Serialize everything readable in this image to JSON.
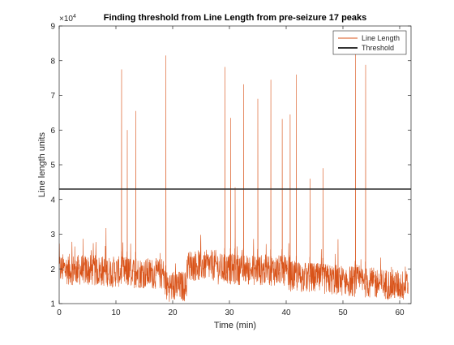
{
  "chart_data": {
    "type": "line",
    "title": "Finding threshold from Line Length from pre-seizure 17 peaks",
    "xlabel": "Time (min)",
    "ylabel": "Line length units",
    "y_exponent_label": "×10",
    "y_exponent_power": "4",
    "xlim": [
      0,
      62
    ],
    "ylim": [
      1,
      9
    ],
    "y_scale_factor": 10000,
    "xticks": [
      0,
      10,
      20,
      30,
      40,
      50,
      60
    ],
    "yticks": [
      1,
      2,
      3,
      4,
      5,
      6,
      7,
      8,
      9
    ],
    "grid": false,
    "legend_placement": "top-right",
    "series": [
      {
        "name": "Line Length",
        "color": "#D95319",
        "baseline_segments": [
          {
            "x": [
              0,
              18.6
            ],
            "y": [
              2.0,
              1.85
            ]
          },
          {
            "x": [
              18.6,
              22.5
            ],
            "y": [
              1.5,
              1.5
            ]
          },
          {
            "x": [
              22.5,
              28
            ],
            "y": [
              2.1,
              2.1
            ]
          },
          {
            "x": [
              28,
              40
            ],
            "y": [
              2.0,
              1.95
            ]
          },
          {
            "x": [
              40,
              62
            ],
            "y": [
              1.8,
              1.5
            ]
          }
        ],
        "peaks": [
          {
            "x": 11.0,
            "y": 7.75
          },
          {
            "x": 12.0,
            "y": 6.0
          },
          {
            "x": 13.5,
            "y": 6.55
          },
          {
            "x": 18.8,
            "y": 8.15
          },
          {
            "x": 29.2,
            "y": 7.82
          },
          {
            "x": 30.2,
            "y": 6.35
          },
          {
            "x": 31.0,
            "y": 4.35
          },
          {
            "x": 32.5,
            "y": 7.32
          },
          {
            "x": 35.0,
            "y": 6.9
          },
          {
            "x": 37.3,
            "y": 7.45
          },
          {
            "x": 39.3,
            "y": 6.32
          },
          {
            "x": 40.7,
            "y": 6.45
          },
          {
            "x": 41.8,
            "y": 7.6
          },
          {
            "x": 44.2,
            "y": 4.6
          },
          {
            "x": 46.5,
            "y": 4.9
          },
          {
            "x": 52.2,
            "y": 8.2
          },
          {
            "x": 54.0,
            "y": 7.88
          }
        ]
      },
      {
        "name": "Threshold",
        "color": "#333333",
        "x": [
          0,
          62
        ],
        "y": [
          4.3,
          4.3
        ]
      }
    ]
  }
}
